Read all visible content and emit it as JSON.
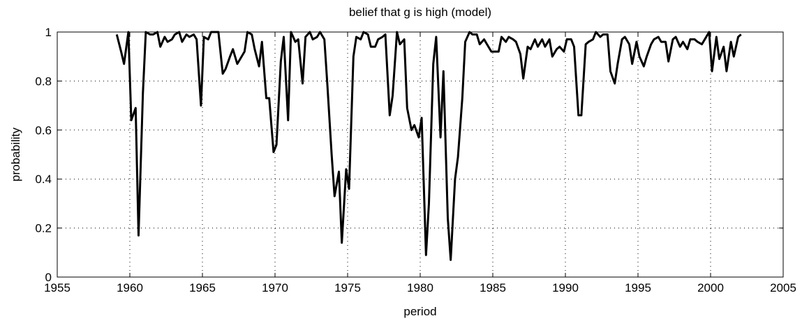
{
  "chart_data": {
    "type": "line",
    "title": "belief that g is high (model)",
    "xlabel": "period",
    "ylabel": "probability",
    "x": [
      1959.1,
      1959.4,
      1959.6,
      1959.9,
      1960.1,
      1960.4,
      1960.6,
      1960.9,
      1961.1,
      1961.4,
      1961.6,
      1961.9,
      1962.1,
      1962.4,
      1962.6,
      1962.9,
      1963.1,
      1963.4,
      1963.6,
      1963.9,
      1964.1,
      1964.4,
      1964.6,
      1964.9,
      1965.1,
      1965.4,
      1965.6,
      1965.9,
      1966.1,
      1966.4,
      1966.6,
      1966.9,
      1967.1,
      1967.4,
      1967.6,
      1967.9,
      1968.1,
      1968.4,
      1968.6,
      1968.9,
      1969.1,
      1969.4,
      1969.6,
      1969.9,
      1970.1,
      1970.4,
      1970.6,
      1970.9,
      1971.1,
      1971.4,
      1971.6,
      1971.9,
      1972.1,
      1972.4,
      1972.6,
      1972.9,
      1973.1,
      1973.4,
      1973.6,
      1973.9,
      1974.1,
      1974.4,
      1974.6,
      1974.9,
      1975.1,
      1975.4,
      1975.6,
      1975.9,
      1976.1,
      1976.4,
      1976.6,
      1976.9,
      1977.1,
      1977.4,
      1977.6,
      1977.9,
      1978.1,
      1978.4,
      1978.6,
      1978.9,
      1979.1,
      1979.4,
      1979.6,
      1979.9,
      1980.1,
      1980.4,
      1980.6,
      1980.9,
      1981.1,
      1981.4,
      1981.6,
      1981.9,
      1982.1,
      1982.4,
      1982.6,
      1982.9,
      1983.1,
      1983.4,
      1983.6,
      1983.9,
      1984.1,
      1984.4,
      1984.6,
      1984.9,
      1985.1,
      1985.4,
      1985.6,
      1985.9,
      1986.1,
      1986.4,
      1986.6,
      1986.9,
      1987.1,
      1987.4,
      1987.6,
      1987.9,
      1988.1,
      1988.4,
      1988.6,
      1988.9,
      1989.1,
      1989.4,
      1989.6,
      1989.9,
      1990.1,
      1990.4,
      1990.6,
      1990.9,
      1991.1,
      1991.4,
      1991.6,
      1991.9,
      1992.1,
      1992.4,
      1992.6,
      1992.9,
      1993.1,
      1993.4,
      1993.6,
      1993.9,
      1994.1,
      1994.4,
      1994.6,
      1994.9,
      1995.1,
      1995.4,
      1995.6,
      1995.9,
      1996.1,
      1996.4,
      1996.6,
      1996.9,
      1997.1,
      1997.4,
      1997.6,
      1997.9,
      1998.1,
      1998.4,
      1998.6,
      1998.9,
      1999.1,
      1999.4,
      1999.6,
      1999.9,
      2000.1,
      2000.4,
      2000.6,
      2000.9,
      2001.1,
      2001.4,
      2001.6,
      2001.9,
      2002.1
    ],
    "series": [
      {
        "color": "#000000",
        "values": [
          0.99,
          0.92,
          0.87,
          1.0,
          0.64,
          0.69,
          0.17,
          0.75,
          1.0,
          0.99,
          0.99,
          1.0,
          0.94,
          0.98,
          0.96,
          0.97,
          0.99,
          1.0,
          0.96,
          0.99,
          0.98,
          0.99,
          0.97,
          0.7,
          0.98,
          0.97,
          1.0,
          1.0,
          1.0,
          0.83,
          0.85,
          0.9,
          0.93,
          0.87,
          0.89,
          0.92,
          1.0,
          0.99,
          0.93,
          0.86,
          0.96,
          0.73,
          0.73,
          0.51,
          0.54,
          0.88,
          0.98,
          0.64,
          1.0,
          0.96,
          0.97,
          0.79,
          0.98,
          1.0,
          0.97,
          0.98,
          1.0,
          0.97,
          0.79,
          0.5,
          0.33,
          0.43,
          0.14,
          0.44,
          0.36,
          0.9,
          0.98,
          0.97,
          1.0,
          0.99,
          0.94,
          0.94,
          0.97,
          0.98,
          0.99,
          0.66,
          0.74,
          1.0,
          0.95,
          0.97,
          0.69,
          0.6,
          0.62,
          0.57,
          0.65,
          0.09,
          0.3,
          0.87,
          0.98,
          0.57,
          0.84,
          0.24,
          0.07,
          0.4,
          0.49,
          0.73,
          0.96,
          1.0,
          0.99,
          0.99,
          0.95,
          0.97,
          0.95,
          0.92,
          0.92,
          0.92,
          0.98,
          0.96,
          0.98,
          0.97,
          0.96,
          0.91,
          0.81,
          0.94,
          0.93,
          0.97,
          0.94,
          0.97,
          0.94,
          0.97,
          0.9,
          0.93,
          0.94,
          0.92,
          0.97,
          0.97,
          0.94,
          0.66,
          0.66,
          0.95,
          0.96,
          0.97,
          1.0,
          0.98,
          0.99,
          0.99,
          0.84,
          0.79,
          0.87,
          0.97,
          0.98,
          0.95,
          0.87,
          0.96,
          0.9,
          0.86,
          0.9,
          0.95,
          0.97,
          0.98,
          0.96,
          0.96,
          0.88,
          0.97,
          0.98,
          0.94,
          0.96,
          0.93,
          0.97,
          0.97,
          0.96,
          0.95,
          0.97,
          1.0,
          0.84,
          0.98,
          0.89,
          0.94,
          0.84,
          0.96,
          0.9,
          0.98,
          0.99
        ]
      }
    ],
    "xlim": [
      1955,
      2005
    ],
    "xticks": [
      1955,
      1960,
      1965,
      1970,
      1975,
      1980,
      1985,
      1990,
      1995,
      2000,
      2005
    ],
    "ylim": [
      0,
      1
    ],
    "yticks": [
      0,
      0.2,
      0.4,
      0.6,
      0.8,
      1
    ],
    "grid": true
  }
}
